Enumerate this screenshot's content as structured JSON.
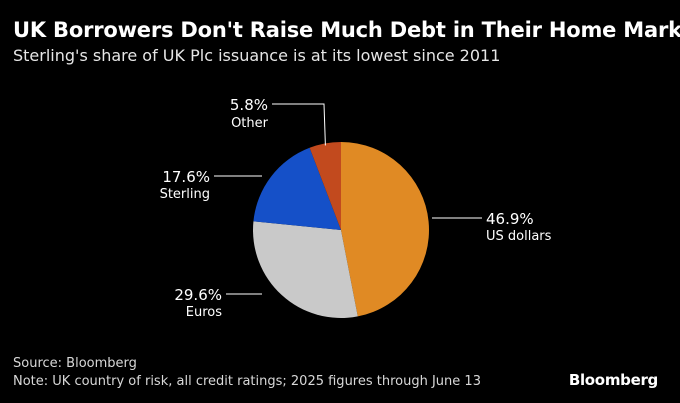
{
  "header": {
    "title": "UK Borrowers Don't Raise Much Debt in Their Home Market",
    "subtitle": "Sterling's share of UK Plc issuance is at its lowest since 2011"
  },
  "footer": {
    "source": "Source: Bloomberg",
    "note": "Note: UK country of risk, all credit ratings; 2025 figures through June 13",
    "brand": "Bloomberg"
  },
  "chart_data": {
    "type": "pie",
    "title": "UK Borrowers Don't Raise Much Debt in Their Home Market",
    "subtitle": "Sterling's share of UK Plc issuance is at its lowest since 2011",
    "unit": "%",
    "slices": [
      {
        "label": "US dollars",
        "value": 46.9,
        "display": "46.9%",
        "color": "#e08a24"
      },
      {
        "label": "Euros",
        "value": 29.6,
        "display": "29.6%",
        "color": "#c9c9c9"
      },
      {
        "label": "Sterling",
        "value": 17.6,
        "display": "17.6%",
        "color": "#1550c8"
      },
      {
        "label": "Other",
        "value": 5.8,
        "display": "5.8%",
        "color": "#c24a1e"
      }
    ]
  }
}
